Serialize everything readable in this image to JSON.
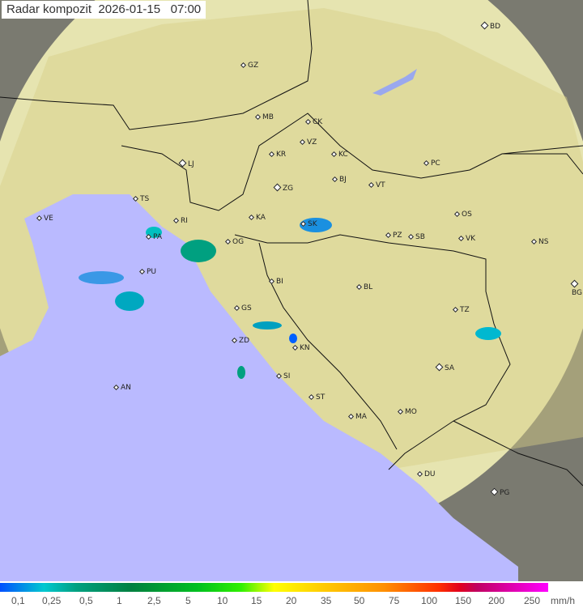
{
  "title": "Radar kompozit  2026-01-15   07:00",
  "colors": {
    "sea": "#babaff",
    "coverage": "#f0f0c8",
    "outside": "#7a7a70",
    "land": "#d8c878"
  },
  "cities": [
    {
      "code": "GZ",
      "big": false
    },
    {
      "code": "BD",
      "big": true
    },
    {
      "code": "MB",
      "big": false
    },
    {
      "code": "CK",
      "big": false
    },
    {
      "code": "VZ",
      "big": false
    },
    {
      "code": "KR",
      "big": false
    },
    {
      "code": "KC",
      "big": false
    },
    {
      "code": "PC",
      "big": false
    },
    {
      "code": "LJ",
      "big": true
    },
    {
      "code": "ZG",
      "big": true
    },
    {
      "code": "BJ",
      "big": false
    },
    {
      "code": "VT",
      "big": false
    },
    {
      "code": "TS",
      "big": false
    },
    {
      "code": "VE",
      "big": false
    },
    {
      "code": "RI",
      "big": false
    },
    {
      "code": "KA",
      "big": false
    },
    {
      "code": "SK",
      "big": false
    },
    {
      "code": "OS",
      "big": false
    },
    {
      "code": "PA",
      "big": false
    },
    {
      "code": "OG",
      "big": false
    },
    {
      "code": "PZ",
      "big": false
    },
    {
      "code": "SB",
      "big": false
    },
    {
      "code": "VK",
      "big": false
    },
    {
      "code": "NS",
      "big": false
    },
    {
      "code": "PU",
      "big": false
    },
    {
      "code": "BI",
      "big": false
    },
    {
      "code": "BL",
      "big": false
    },
    {
      "code": "BG",
      "big": true
    },
    {
      "code": "GS",
      "big": false
    },
    {
      "code": "TZ",
      "big": false
    },
    {
      "code": "ZD",
      "big": false
    },
    {
      "code": "KN",
      "big": false
    },
    {
      "code": "SI",
      "big": false
    },
    {
      "code": "SA",
      "big": true
    },
    {
      "code": "AN",
      "big": false
    },
    {
      "code": "ST",
      "big": false
    },
    {
      "code": "MA",
      "big": false
    },
    {
      "code": "MO",
      "big": false
    },
    {
      "code": "DU",
      "big": false
    },
    {
      "code": "PG",
      "big": true
    }
  ],
  "legend": {
    "labels": [
      "0,1",
      "0,25",
      "0,5",
      "1",
      "2,5",
      "5",
      "10",
      "15",
      "20",
      "35",
      "50",
      "75",
      "100",
      "150",
      "200",
      "250"
    ],
    "unit": "mm/h"
  }
}
